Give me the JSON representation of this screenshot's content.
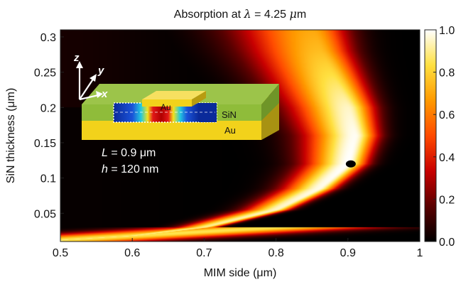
{
  "chart_data": {
    "type": "heatmap",
    "title": "Absorption at λ = 4.25 μm",
    "title_parts": [
      "Absorption at ",
      "λ",
      " = 4.25 ",
      "μ",
      "m"
    ],
    "xlabel": "MIM side (μm)",
    "ylabel": "SiN thickness (μm)",
    "xlim": [
      0.5,
      1.0
    ],
    "ylim": [
      0.01,
      0.31
    ],
    "x_ticks": [
      0.5,
      0.6,
      0.7,
      0.8,
      0.9,
      1.0
    ],
    "x_tick_labels": [
      "0.5",
      "0.6",
      "0.7",
      "0.8",
      "0.9",
      "1"
    ],
    "y_ticks": [
      0.05,
      0.1,
      0.15,
      0.2,
      0.25,
      0.3
    ],
    "y_tick_labels": [
      "0.05",
      "0.1",
      "0.15",
      "0.2",
      "0.25",
      "0.3"
    ],
    "colorbar": {
      "range": [
        0.0,
        1.0
      ],
      "ticks": [
        0.0,
        0.2,
        0.4,
        0.6,
        0.8,
        1.0
      ],
      "tick_labels": [
        "0.0",
        "0.2",
        "0.4",
        "0.6",
        "0.8",
        "1.0"
      ],
      "colormap": "hot",
      "stops": [
        "#000000",
        "#5a0000",
        "#c80000",
        "#ff4a00",
        "#ff9a00",
        "#ffe040",
        "#ffffff"
      ]
    },
    "resonance_ridge": {
      "description_points": [
        {
          "x": 0.5,
          "y": 0.012,
          "value": 0.9
        },
        {
          "x": 0.6,
          "y": 0.018,
          "value": 0.9
        },
        {
          "x": 0.7,
          "y": 0.03,
          "value": 0.9
        },
        {
          "x": 0.8,
          "y": 0.055,
          "value": 0.95
        },
        {
          "x": 0.86,
          "y": 0.085,
          "value": 0.98
        },
        {
          "x": 0.9,
          "y": 0.12,
          "value": 1.0
        },
        {
          "x": 0.91,
          "y": 0.16,
          "value": 0.99
        },
        {
          "x": 0.9,
          "y": 0.2,
          "value": 0.95
        },
        {
          "x": 0.88,
          "y": 0.24,
          "value": 0.85
        },
        {
          "x": 0.86,
          "y": 0.28,
          "value": 0.75
        },
        {
          "x": 0.85,
          "y": 0.31,
          "value": 0.7
        }
      ]
    },
    "marker": {
      "x": 0.904,
      "y": 0.12,
      "color": "#000000"
    },
    "annotations": {
      "L_symbol": "L",
      "L_rest": " = 0.9 μm",
      "h_symbol": "h",
      "h_rest": " = 120 nm"
    }
  },
  "inset": {
    "labels": {
      "au_top": "Au",
      "au_mid": "Au",
      "sin": "SiN",
      "au_bottom": "Au"
    },
    "axes": {
      "x": "x",
      "y": "y",
      "z": "z"
    },
    "colors": {
      "sin": "#8fbc3a",
      "sin_dark": "#6f9528",
      "au": "#f2d21b",
      "au_dark": "#c8a810",
      "field_bg": "#0a2a9a"
    }
  }
}
